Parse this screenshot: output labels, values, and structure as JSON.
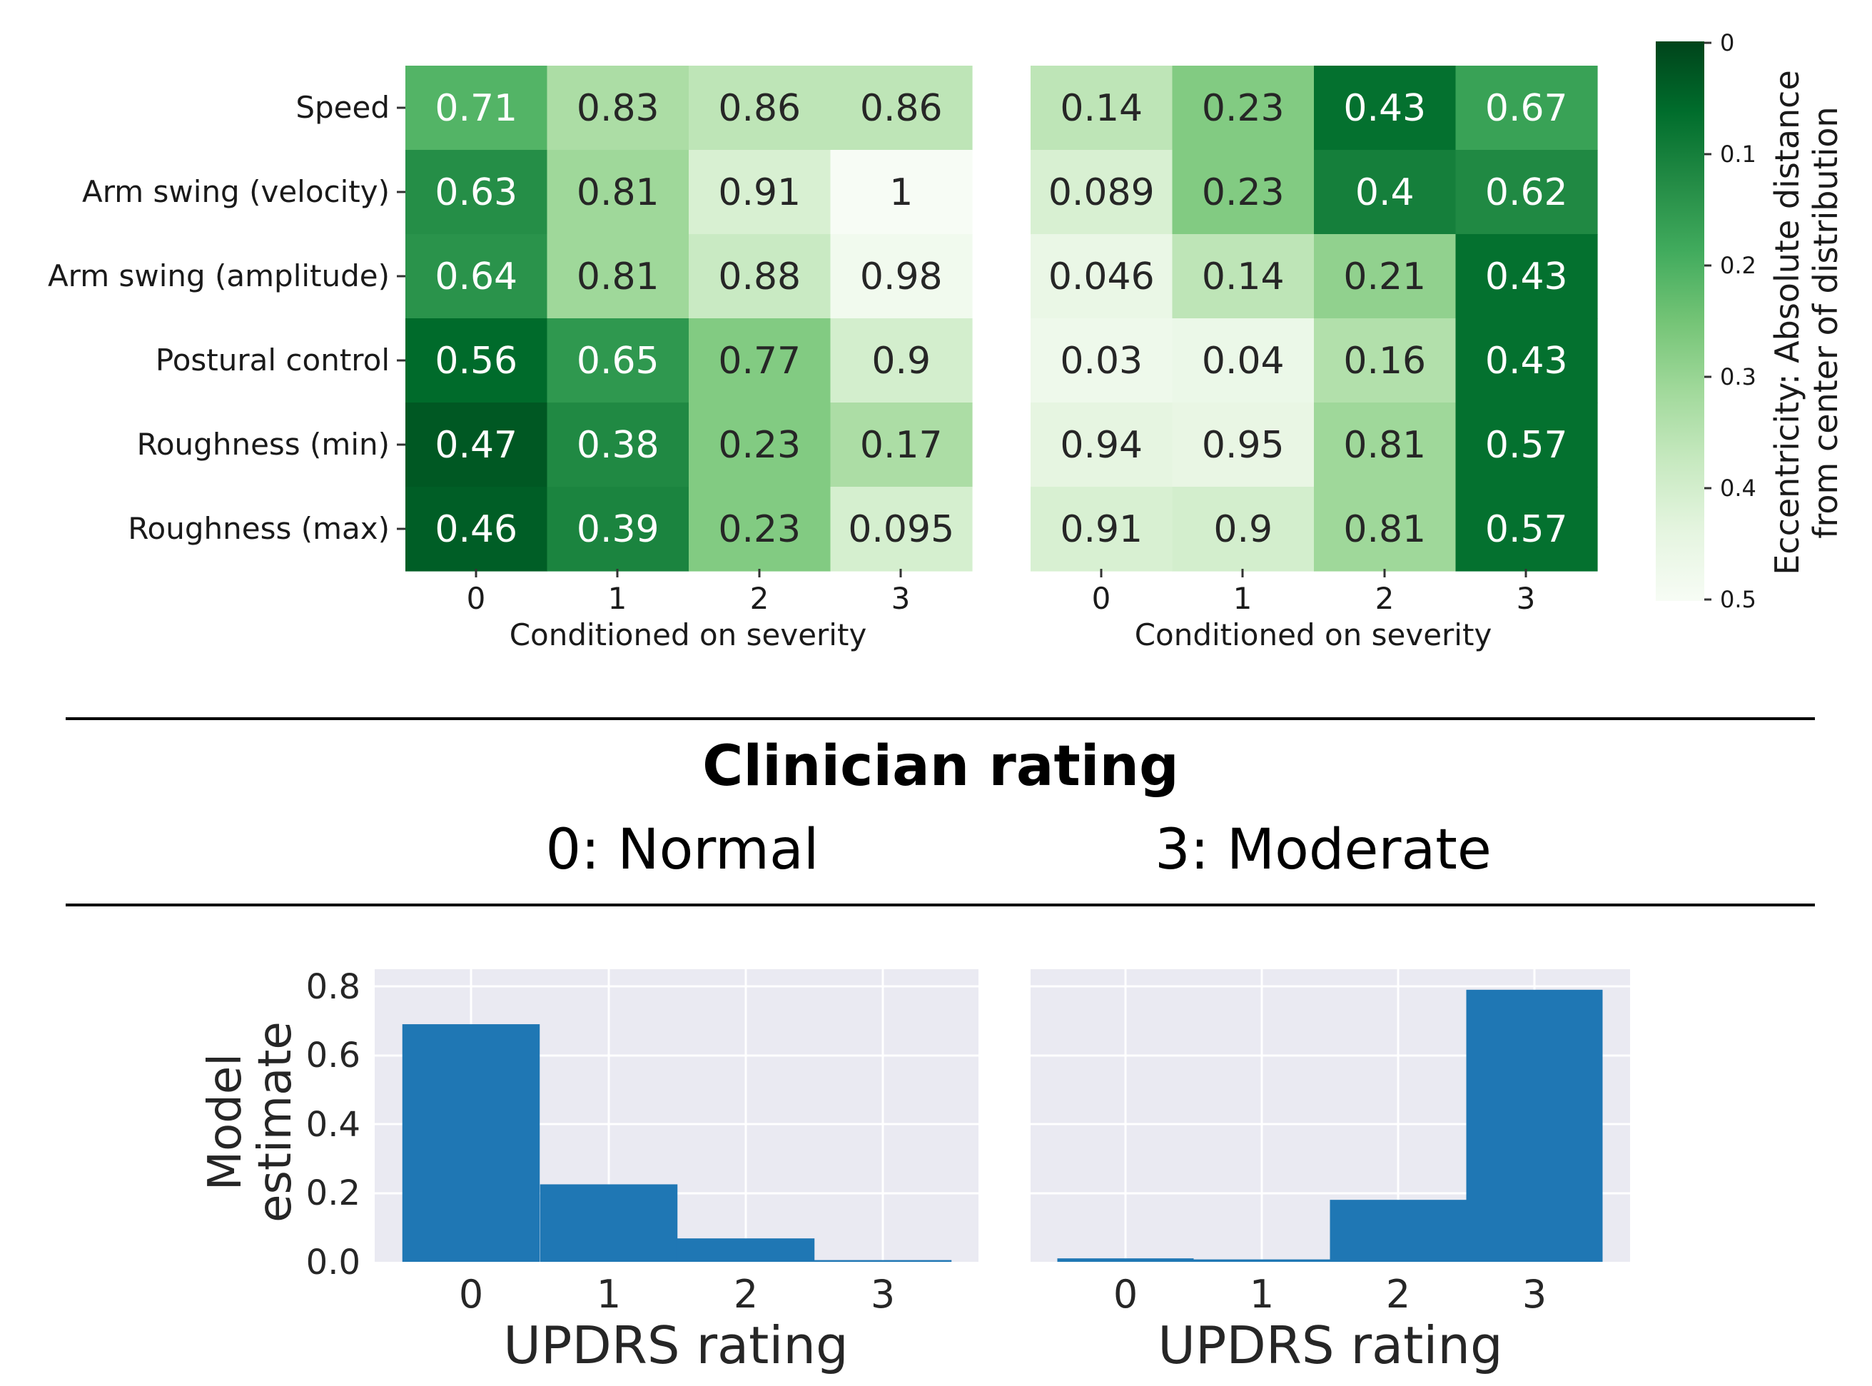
{
  "colors": {
    "colormap": [
      "#f7fcf5",
      "#e5f5e0",
      "#c7e9c0",
      "#a1d99b",
      "#74c476",
      "#41ab5d",
      "#238b45",
      "#006d2c",
      "#00441b"
    ],
    "bar": "#1f77b4",
    "bar_panel_bg": "#eaeaf2"
  },
  "chart_data": [
    {
      "type": "heatmap",
      "panel": "left",
      "rows": [
        "Speed",
        "Arm swing (velocity)",
        "Arm swing (amplitude)",
        "Postural control",
        "Roughness (min)",
        "Roughness (max)"
      ],
      "columns": [
        "0",
        "1",
        "2",
        "3"
      ],
      "xlabel": "Conditioned on severity",
      "cell_labels": [
        [
          "0.71",
          "0.83",
          "0.86",
          "0.86"
        ],
        [
          "0.63",
          "0.81",
          "0.91",
          "1"
        ],
        [
          "0.64",
          "0.81",
          "0.88",
          "0.98"
        ],
        [
          "0.56",
          "0.65",
          "0.77",
          "0.9"
        ],
        [
          "0.47",
          "0.38",
          "0.23",
          "0.17"
        ],
        [
          "0.46",
          "0.39",
          "0.23",
          "0.095"
        ]
      ],
      "eccentricity": [
        [
          0.21,
          0.33,
          0.36,
          0.36
        ],
        [
          0.13,
          0.31,
          0.41,
          0.5
        ],
        [
          0.14,
          0.31,
          0.38,
          0.48
        ],
        [
          0.06,
          0.15,
          0.27,
          0.4
        ],
        [
          0.03,
          0.12,
          0.27,
          0.33
        ],
        [
          0.04,
          0.11,
          0.27,
          0.405
        ]
      ]
    },
    {
      "type": "heatmap",
      "panel": "right",
      "rows": [
        "Speed",
        "Arm swing (velocity)",
        "Arm swing (amplitude)",
        "Postural control",
        "Roughness (min)",
        "Roughness (max)"
      ],
      "columns": [
        "0",
        "1",
        "2",
        "3"
      ],
      "xlabel": "Conditioned on severity",
      "cell_labels": [
        [
          "0.14",
          "0.23",
          "0.43",
          "0.67"
        ],
        [
          "0.089",
          "0.23",
          "0.4",
          "0.62"
        ],
        [
          "0.046",
          "0.14",
          "0.21",
          "0.43"
        ],
        [
          "0.03",
          "0.04",
          "0.16",
          "0.43"
        ],
        [
          "0.94",
          "0.95",
          "0.81",
          "0.57"
        ],
        [
          "0.91",
          "0.9",
          "0.81",
          "0.57"
        ]
      ],
      "eccentricity": [
        [
          0.36,
          0.27,
          0.07,
          0.17
        ],
        [
          0.411,
          0.27,
          0.1,
          0.12
        ],
        [
          0.454,
          0.36,
          0.29,
          0.07
        ],
        [
          0.47,
          0.46,
          0.34,
          0.07
        ],
        [
          0.44,
          0.45,
          0.31,
          0.07
        ],
        [
          0.41,
          0.4,
          0.31,
          0.07
        ]
      ]
    },
    {
      "type": "colorbar",
      "label_line1": "Eccentricity: Absolute distance",
      "label_line2": "from center of distribution",
      "range": [
        0,
        0.5
      ],
      "ticks": [
        "0",
        "0.1",
        "0.2",
        "0.3",
        "0.4",
        "0.5"
      ]
    },
    {
      "type": "bar",
      "panel": "left",
      "condition": "0: Normal",
      "categories": [
        "0",
        "1",
        "2",
        "3"
      ],
      "values": [
        0.69,
        0.225,
        0.068,
        0.005
      ],
      "xlabel": "UPDRS rating",
      "ylabel_line1": "Model",
      "ylabel_line2": "estimate",
      "ylim": [
        0,
        0.8
      ],
      "yticks": [
        "0.0",
        "0.2",
        "0.4",
        "0.6",
        "0.8"
      ]
    },
    {
      "type": "bar",
      "panel": "right",
      "condition": "3: Moderate",
      "categories": [
        "0",
        "1",
        "2",
        "3"
      ],
      "values": [
        0.01,
        0.007,
        0.18,
        0.79
      ],
      "xlabel": "UPDRS rating",
      "ylim": [
        0,
        0.8
      ]
    }
  ],
  "section": {
    "title": "Clinician rating"
  }
}
